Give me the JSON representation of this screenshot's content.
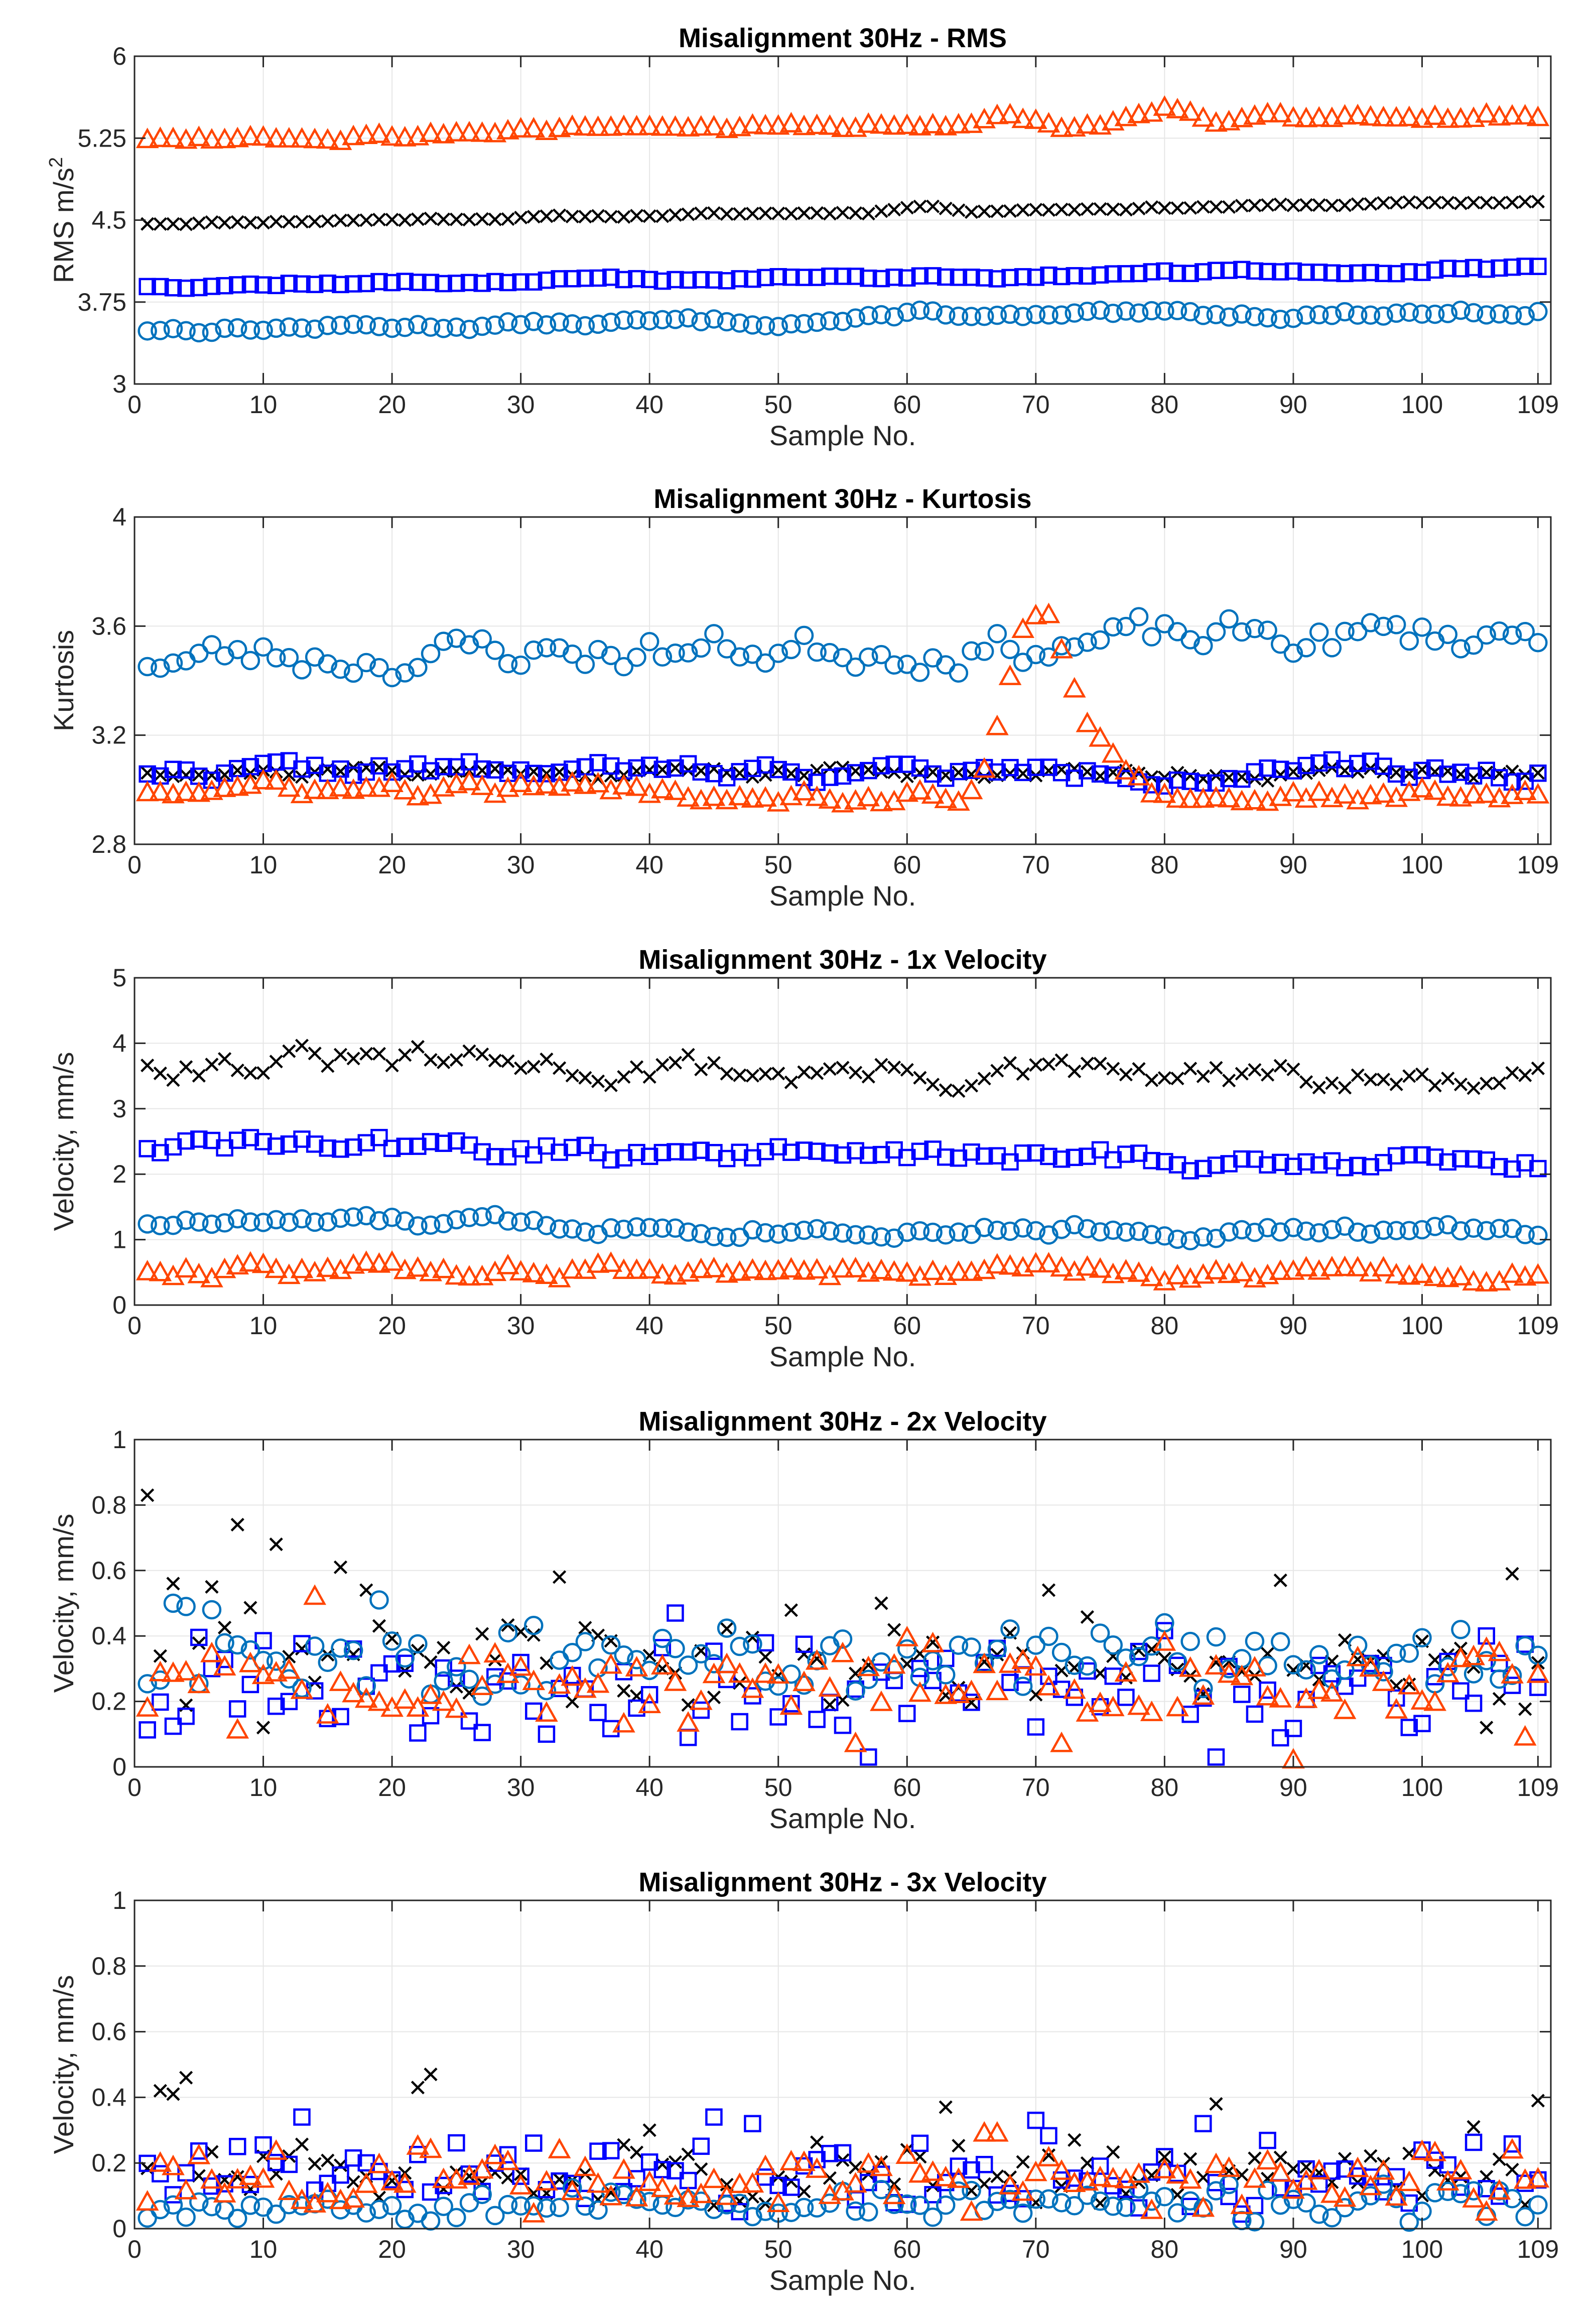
{
  "colors": {
    "black": "#000000",
    "blue": "#0000ff",
    "cyan": "#0072bd",
    "orange": "#ff4500",
    "grid": "#e6e6e6",
    "axis": "#262626"
  },
  "chart_data": [
    {
      "type": "scatter",
      "title": "Misalignment 30Hz - RMS",
      "xlabel": "Sample No.",
      "ylabel": "RMS m/s",
      "ylabel_superscript": "2",
      "xlim": [
        0,
        110
      ],
      "ylim": [
        3,
        6
      ],
      "xticks": [
        0,
        10,
        20,
        30,
        40,
        50,
        60,
        70,
        80,
        90,
        100,
        109
      ],
      "yticks": [
        3,
        3.75,
        4.5,
        5.25,
        6
      ],
      "ytick_labels": [
        "3",
        "3.75",
        "4.5",
        "5.25",
        "6"
      ],
      "grid": true,
      "series": [
        {
          "name": "black x",
          "marker": "x",
          "color": "#000000",
          "gen": {
            "kind": "trend",
            "start": 4.47,
            "end": 4.67,
            "amp": 0.012,
            "seed": 11,
            "bumps": [
              [
                61,
                0.05
              ]
            ]
          }
        },
        {
          "name": "blue square",
          "marker": "square",
          "color": "#0000ff",
          "gen": {
            "kind": "trend",
            "start": 3.9,
            "end": 4.05,
            "amp": 0.02,
            "seed": 12
          }
        },
        {
          "name": "cyan circle",
          "marker": "circle",
          "color": "#0072bd",
          "gen": {
            "kind": "trend",
            "start": 3.5,
            "end": 3.67,
            "amp": 0.035,
            "seed": 13,
            "bumps": [
              [
                62,
                0.08
              ],
              [
                70,
                0.0
              ]
            ]
          }
        },
        {
          "name": "orange triangle",
          "marker": "triangle",
          "color": "#ff4500",
          "gen": {
            "kind": "trend",
            "start": 5.25,
            "end": 5.47,
            "amp": 0.04,
            "seed": 14,
            "bumps": [
              [
                68,
                0.12
              ],
              [
                80,
                0.15
              ]
            ]
          }
        }
      ]
    },
    {
      "type": "scatter",
      "title": "Misalignment 30Hz - Kurtosis",
      "xlabel": "Sample No.",
      "ylabel": "Kurtosis",
      "xlim": [
        0,
        110
      ],
      "ylim": [
        2.8,
        4
      ],
      "xticks": [
        0,
        10,
        20,
        30,
        40,
        50,
        60,
        70,
        80,
        90,
        100,
        109
      ],
      "yticks": [
        2.8,
        3.2,
        3.6,
        4
      ],
      "ytick_labels": [
        "2.8",
        "3.2",
        "3.6",
        "4"
      ],
      "grid": true,
      "series": [
        {
          "name": "black x",
          "marker": "x",
          "color": "#000000",
          "gen": {
            "kind": "trend",
            "start": 3.07,
            "end": 3.06,
            "amp": 0.02,
            "seed": 21
          }
        },
        {
          "name": "blue square",
          "marker": "square",
          "color": "#0000ff",
          "gen": {
            "kind": "trend",
            "start": 3.07,
            "end": 3.06,
            "amp": 0.03,
            "seed": 22
          }
        },
        {
          "name": "cyan circle",
          "marker": "circle",
          "color": "#0072bd",
          "gen": {
            "kind": "trend",
            "start": 3.48,
            "end": 3.57,
            "amp": 0.07,
            "seed": 23
          }
        },
        {
          "name": "orange triangle",
          "marker": "triangle",
          "color": "#ff4500",
          "gen": {
            "kind": "trend",
            "start": 3.0,
            "end": 2.97,
            "amp": 0.03,
            "seed": 24,
            "bumps": [
              [
                68,
                0.18
              ],
              [
                69,
                0.18
              ],
              [
                70,
                0.17
              ],
              [
                71,
                0.22
              ],
              [
                72,
                0.22
              ],
              [
                75,
                0.08
              ],
              [
                76,
                0.08
              ]
            ]
          }
        }
      ]
    },
    {
      "type": "scatter",
      "title": "Misalignment 30Hz - 1x Velocity",
      "xlabel": "Sample No.",
      "ylabel": "Velocity, mm/s",
      "xlim": [
        0,
        110
      ],
      "ylim": [
        0,
        5
      ],
      "xticks": [
        0,
        10,
        20,
        30,
        40,
        50,
        60,
        70,
        80,
        90,
        100,
        109
      ],
      "yticks": [
        0,
        1,
        2,
        3,
        4,
        5
      ],
      "ytick_labels": [
        "0",
        "1",
        "2",
        "3",
        "4",
        "5"
      ],
      "grid": true,
      "series": [
        {
          "name": "black x",
          "marker": "x",
          "color": "#000000",
          "gen": {
            "kind": "trend",
            "start": 3.75,
            "end": 3.35,
            "amp": 0.22,
            "seed": 31
          }
        },
        {
          "name": "blue square",
          "marker": "square",
          "color": "#0000ff",
          "gen": {
            "kind": "trend",
            "start": 2.45,
            "end": 2.15,
            "amp": 0.15,
            "seed": 32
          }
        },
        {
          "name": "cyan circle",
          "marker": "circle",
          "color": "#0072bd",
          "gen": {
            "kind": "trend",
            "start": 1.28,
            "end": 1.1,
            "amp": 0.1,
            "seed": 33
          }
        },
        {
          "name": "orange triangle",
          "marker": "triangle",
          "color": "#ff4500",
          "gen": {
            "kind": "trend",
            "start": 0.55,
            "end": 0.45,
            "amp": 0.12,
            "seed": 34
          }
        }
      ]
    },
    {
      "type": "scatter",
      "title": "Misalignment 30Hz - 2x Velocity",
      "xlabel": "Sample No.",
      "ylabel": "Velocity, mm/s",
      "xlim": [
        0,
        110
      ],
      "ylim": [
        0,
        1
      ],
      "xticks": [
        0,
        10,
        20,
        30,
        40,
        50,
        60,
        70,
        80,
        90,
        100,
        109
      ],
      "yticks": [
        0,
        0.2,
        0.4,
        0.6,
        0.8,
        1
      ],
      "ytick_labels": [
        "0",
        "0.2",
        "0.4",
        "0.6",
        "0.8",
        "1"
      ],
      "grid": true,
      "series": [
        {
          "name": "black x",
          "marker": "x",
          "color": "#000000",
          "gen": {
            "kind": "scatter",
            "lo": 0.15,
            "hi": 0.5,
            "seed": 41,
            "fixed": [
              [
                1,
                0.83
              ],
              [
                3,
                0.56
              ],
              [
                6,
                0.55
              ],
              [
                8,
                0.74
              ],
              [
                11,
                0.68
              ],
              [
                16,
                0.61
              ],
              [
                18,
                0.54
              ],
              [
                33,
                0.58
              ],
              [
                58,
                0.5
              ],
              [
                71,
                0.54
              ],
              [
                89,
                0.57
              ],
              [
                107,
                0.59
              ],
              [
                10,
                0.12
              ],
              [
                105,
                0.12
              ]
            ]
          }
        },
        {
          "name": "blue square",
          "marker": "square",
          "color": "#0000ff",
          "gen": {
            "kind": "scatter",
            "lo": 0.05,
            "hi": 0.42,
            "seed": 42,
            "fixed": [
              [
                57,
                0.03
              ],
              [
                84,
                0.03
              ],
              [
                43,
                0.09
              ],
              [
                32,
                0.1
              ],
              [
                105,
                0.4
              ],
              [
                42,
                0.47
              ]
            ]
          }
        },
        {
          "name": "cyan circle",
          "marker": "circle",
          "color": "#0072bd",
          "gen": {
            "kind": "scatter",
            "lo": 0.2,
            "hi": 0.45,
            "seed": 43,
            "fixed": [
              [
                3,
                0.5
              ],
              [
                4,
                0.49
              ],
              [
                19,
                0.51
              ],
              [
                6,
                0.48
              ]
            ]
          }
        },
        {
          "name": "orange triangle",
          "marker": "triangle",
          "color": "#ff4500",
          "gen": {
            "kind": "scatter",
            "lo": 0.1,
            "hi": 0.4,
            "seed": 44,
            "fixed": [
              [
                14,
                0.52
              ],
              [
                90,
                0.02
              ],
              [
                56,
                0.07
              ],
              [
                72,
                0.07
              ],
              [
                108,
                0.09
              ],
              [
                38,
                0.13
              ]
            ]
          }
        }
      ]
    },
    {
      "type": "scatter",
      "title": "Misalignment 30Hz - 3x Velocity",
      "xlabel": "Sample No.",
      "ylabel": "Velocity, mm/s",
      "xlim": [
        0,
        110
      ],
      "ylim": [
        0,
        1
      ],
      "xticks": [
        0,
        10,
        20,
        30,
        40,
        50,
        60,
        70,
        80,
        90,
        100,
        109
      ],
      "yticks": [
        0,
        0.2,
        0.4,
        0.6,
        0.8,
        1
      ],
      "ytick_labels": [
        "0",
        "0.2",
        "0.4",
        "0.6",
        "0.8",
        "1"
      ],
      "grid": true,
      "series": [
        {
          "name": "black x",
          "marker": "x",
          "color": "#000000",
          "gen": {
            "kind": "scatter",
            "lo": 0.05,
            "hi": 0.28,
            "seed": 51,
            "fixed": [
              [
                2,
                0.42
              ],
              [
                3,
                0.41
              ],
              [
                4,
                0.46
              ],
              [
                22,
                0.43
              ],
              [
                23,
                0.47
              ],
              [
                63,
                0.37
              ],
              [
                84,
                0.38
              ],
              [
                109,
                0.39
              ],
              [
                40,
                0.3
              ],
              [
                104,
                0.31
              ]
            ]
          }
        },
        {
          "name": "blue square",
          "marker": "square",
          "color": "#0000ff",
          "gen": {
            "kind": "scatter",
            "lo": 0.03,
            "hi": 0.3,
            "seed": 52,
            "fixed": [
              [
                13,
                0.34
              ],
              [
                45,
                0.34
              ],
              [
                70,
                0.33
              ],
              [
                83,
                0.32
              ],
              [
                48,
                0.32
              ]
            ]
          }
        },
        {
          "name": "cyan circle",
          "marker": "circle",
          "color": "#0072bd",
          "gen": {
            "kind": "scatter",
            "lo": 0.01,
            "hi": 0.14,
            "seed": 53
          }
        },
        {
          "name": "orange triangle",
          "marker": "triangle",
          "color": "#ff4500",
          "gen": {
            "kind": "scatter",
            "lo": 0.03,
            "hi": 0.26,
            "seed": 54,
            "fixed": [
              [
                66,
                0.29
              ],
              [
                67,
                0.29
              ],
              [
                22,
                0.25
              ],
              [
                23,
                0.24
              ]
            ]
          }
        }
      ]
    }
  ]
}
